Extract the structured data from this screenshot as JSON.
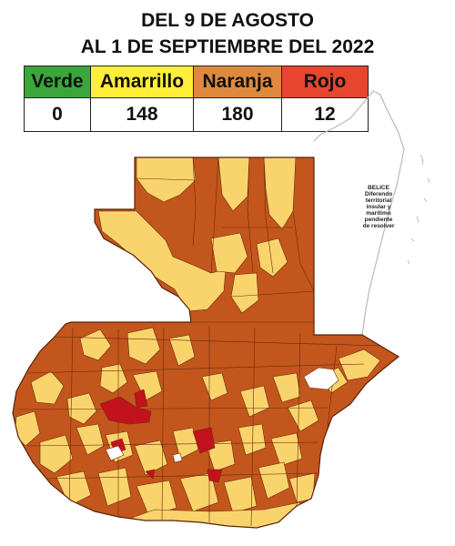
{
  "title": {
    "line1": "DEL 9 DE AGOSTO",
    "line2": "AL 1 DE SEPTIEMBRE DEL 2022"
  },
  "legend": [
    {
      "label": "Verde",
      "count": "0",
      "color": "#3aa63c"
    },
    {
      "label": "Amarrillo",
      "count": "148",
      "color": "#ffef38"
    },
    {
      "label": "Naranja",
      "count": "180",
      "color": "#de8a3e"
    },
    {
      "label": "Rojo",
      "count": "12",
      "color": "#e8452e"
    }
  ],
  "map": {
    "colors": {
      "yellow": "#f9d46c",
      "orange": "#c3561c",
      "red": "#c3121c",
      "lake": "#ffffff",
      "border": "#6b2a0d"
    },
    "belize_note": [
      "BELICE",
      "Diferendo",
      "territorial",
      "insular y",
      "marítimo",
      "pendiente",
      "de resolver"
    ]
  }
}
